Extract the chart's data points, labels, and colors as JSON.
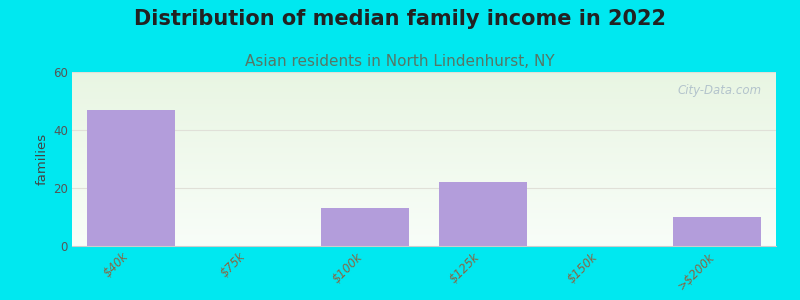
{
  "title": "Distribution of median family income in 2022",
  "subtitle": "Asian residents in North Lindenhurst, NY",
  "categories": [
    "$40k",
    "$75k",
    "$100k",
    "$125k",
    "$150k",
    ">$200k"
  ],
  "values": [
    47,
    0,
    13,
    22,
    0,
    10
  ],
  "bar_color": "#b39ddb",
  "ylim": [
    0,
    60
  ],
  "yticks": [
    0,
    20,
    40,
    60
  ],
  "ylabel": "families",
  "background_color": "#00e8f0",
  "plot_bg_top": "#e8f5e2",
  "plot_bg_bottom": "#f8fdf8",
  "title_fontsize": 15,
  "subtitle_fontsize": 11,
  "title_color": "#222222",
  "subtitle_color": "#557766",
  "tick_color": "#886644",
  "watermark": "City-Data.com",
  "grid_color": "#e0e0d8",
  "bar_width": 0.75
}
